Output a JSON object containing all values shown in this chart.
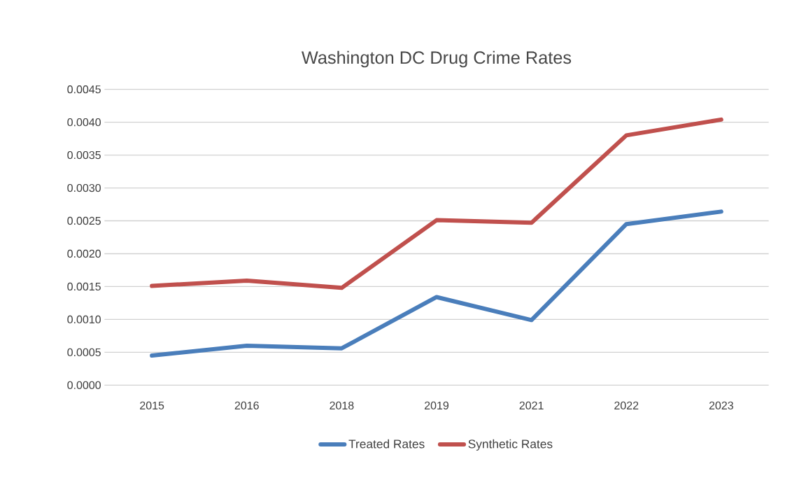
{
  "chart_data": {
    "type": "line",
    "title": "Washington DC Drug Crime Rates",
    "categories": [
      "2015",
      "2016",
      "2018",
      "2019",
      "2021",
      "2022",
      "2023"
    ],
    "series": [
      {
        "name": "Treated Rates",
        "color": "#4a7ebb",
        "values": [
          0.00045,
          0.0006,
          0.00056,
          0.00134,
          0.00099,
          0.00245,
          0.00264
        ]
      },
      {
        "name": "Synthetic Rates",
        "color": "#c0504d",
        "values": [
          0.00151,
          0.00159,
          0.00148,
          0.00251,
          0.00247,
          0.0038,
          0.00404
        ]
      }
    ],
    "ylim": [
      0,
      0.0045
    ],
    "yticks": [
      {
        "value": 0,
        "label": "0.0000"
      },
      {
        "value": 0.0005,
        "label": "0.0005"
      },
      {
        "value": 0.001,
        "label": "0.0010"
      },
      {
        "value": 0.0015,
        "label": "0.0015"
      },
      {
        "value": 0.002,
        "label": "0.0020"
      },
      {
        "value": 0.0025,
        "label": "0.0025"
      },
      {
        "value": 0.003,
        "label": "0.0030"
      },
      {
        "value": 0.0035,
        "label": "0.0035"
      },
      {
        "value": 0.004,
        "label": "0.0040"
      },
      {
        "value": 0.0045,
        "label": "0.0045"
      }
    ],
    "grid": "y",
    "legend": "bottom",
    "marker": "none",
    "line_style": "solid"
  }
}
